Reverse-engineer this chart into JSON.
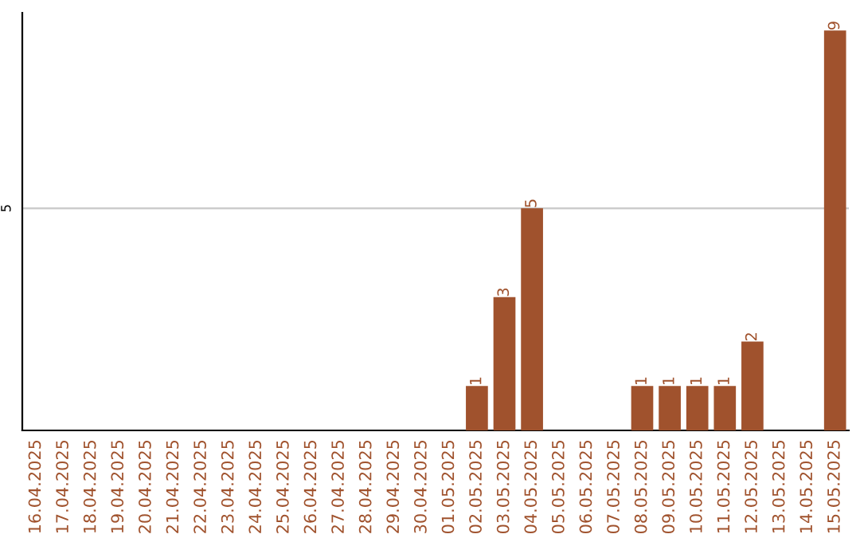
{
  "chart_data": {
    "type": "bar",
    "categories": [
      "16.04.2025",
      "17.04.2025",
      "18.04.2025",
      "19.04.2025",
      "20.04.2025",
      "21.04.2025",
      "22.04.2025",
      "23.04.2025",
      "24.04.2025",
      "25.04.2025",
      "26.04.2025",
      "27.04.2025",
      "28.04.2025",
      "29.04.2025",
      "30.04.2025",
      "01.05.2025",
      "02.05.2025",
      "03.05.2025",
      "04.05.2025",
      "05.05.2025",
      "06.05.2025",
      "07.05.2025",
      "08.05.2025",
      "09.05.2025",
      "10.05.2025",
      "11.05.2025",
      "12.05.2025",
      "13.05.2025",
      "14.05.2025",
      "15.05.2025"
    ],
    "values": [
      null,
      null,
      null,
      null,
      null,
      null,
      null,
      null,
      null,
      null,
      null,
      null,
      null,
      null,
      null,
      null,
      1,
      3,
      5,
      null,
      null,
      null,
      1,
      1,
      1,
      1,
      2,
      null,
      null,
      9
    ],
    "data_labels": true,
    "color": "#a0522d",
    "ylim": [
      0,
      9.4
    ],
    "ref_lines": [
      {
        "axis": "y",
        "value": 5,
        "label": "5",
        "color": "#c8c8c8"
      }
    ]
  }
}
